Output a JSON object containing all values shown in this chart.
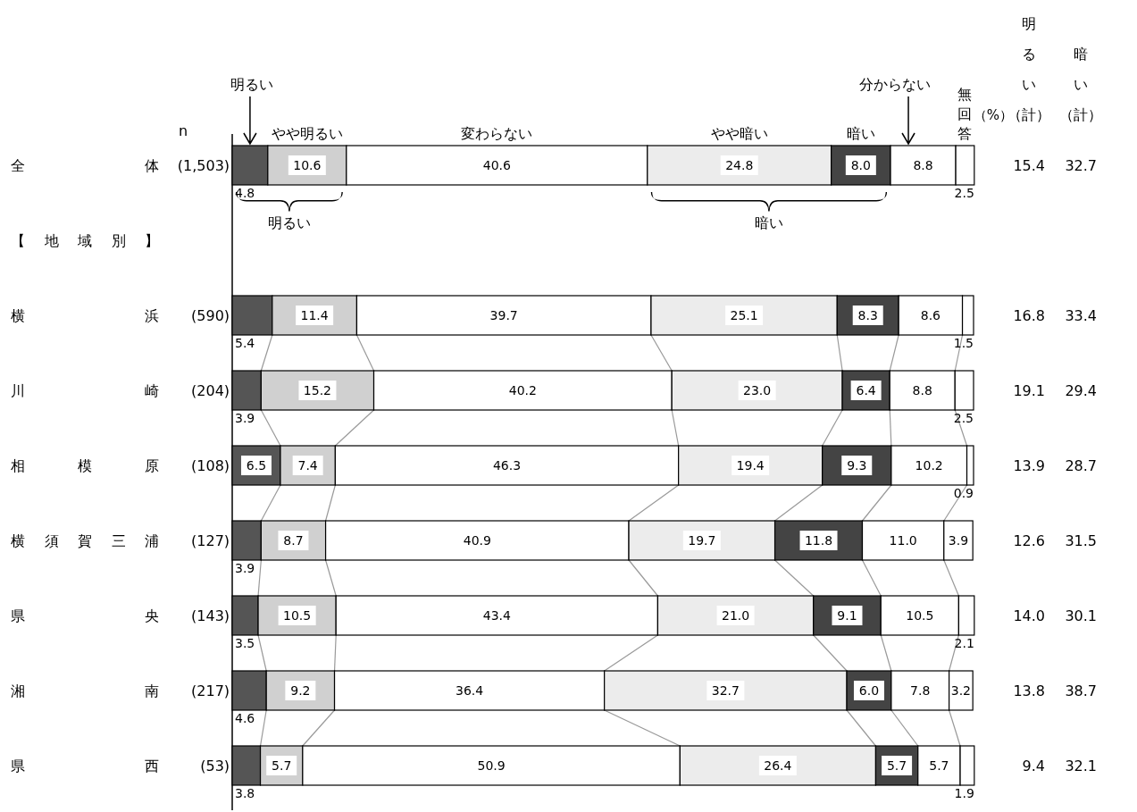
{
  "chart_data": {
    "type": "bar",
    "orientation": "horizontal",
    "stacked": true,
    "categories": [
      "全体 (1,503)",
      "【地域別】",
      "横浜 (590)",
      "川崎 (204)",
      "相模原 (108)",
      "横須賀三浦 (127)",
      "県央 (143)",
      "湘南 (217)",
      "県西 (53)"
    ],
    "xlim": [
      0,
      100
    ],
    "series": [
      {
        "name": "明るい",
        "color": "#555555",
        "values": [
          4.8,
          null,
          5.4,
          3.9,
          6.5,
          3.9,
          3.5,
          4.6,
          3.8
        ],
        "value_labels": [
          "4.8",
          null,
          "5.4",
          "3.9",
          "6.5",
          "3.9",
          "3.5",
          "4.6",
          "3.8"
        ]
      },
      {
        "name": "やや明るい",
        "color": "#d0d0d0",
        "values": [
          10.6,
          null,
          11.4,
          15.2,
          7.4,
          8.7,
          10.5,
          9.2,
          5.7
        ],
        "value_labels": [
          "10.6",
          null,
          "11.4",
          "15.2",
          "7.4",
          "8.7",
          "10.5",
          "9.2",
          "5.7"
        ]
      },
      {
        "name": "変わらない",
        "color": "#ffffff",
        "values": [
          40.6,
          null,
          39.7,
          40.2,
          46.3,
          40.9,
          43.4,
          36.4,
          50.9
        ],
        "value_labels": [
          "40.6",
          null,
          "39.7",
          "40.2",
          "46.3",
          "40.9",
          "43.4",
          "36.4",
          "50.9"
        ]
      },
      {
        "name": "やや暗い",
        "color": "#ececec",
        "values": [
          24.8,
          null,
          25.1,
          23.0,
          19.4,
          19.7,
          21.0,
          32.7,
          26.4
        ],
        "value_labels": [
          "24.8",
          null,
          "25.1",
          "23.0",
          "19.4",
          "19.7",
          "21.0",
          "32.7",
          "26.4"
        ]
      },
      {
        "name": "暗い",
        "color": "#444444",
        "values": [
          8.0,
          null,
          8.3,
          6.4,
          9.3,
          11.8,
          9.1,
          6.0,
          5.7
        ],
        "value_labels": [
          "8.0",
          null,
          "8.3",
          "6.4",
          "9.3",
          "11.8",
          "9.1",
          "6.0",
          "5.7"
        ]
      },
      {
        "name": "分からない",
        "color": "#ffffff",
        "values": [
          8.8,
          null,
          8.6,
          8.8,
          10.2,
          11.0,
          10.5,
          7.8,
          5.7
        ],
        "value_labels": [
          "8.8",
          null,
          "8.6",
          "8.8",
          "10.2",
          "11.0",
          "10.5",
          "7.8",
          "5.7"
        ]
      },
      {
        "name": "無回答",
        "color": "#ffffff",
        "values": [
          2.5,
          null,
          1.5,
          2.5,
          0.9,
          3.9,
          2.1,
          3.2,
          1.9
        ],
        "value_labels": [
          "2.5",
          null,
          "1.5",
          "2.5",
          "0.9",
          "3.9",
          "2.1",
          "3.2",
          "1.9"
        ]
      }
    ],
    "annotations": [
      "n",
      "（%）",
      "明るい（計）",
      "暗い（計）",
      "明るい",
      "暗い",
      "15.4",
      "32.7",
      "16.8",
      "33.4",
      "19.1",
      "29.4",
      "13.9",
      "28.7",
      "12.6",
      "31.5",
      "14.0",
      "30.1",
      "13.8",
      "38.7",
      "9.4",
      "32.1"
    ]
  }
}
